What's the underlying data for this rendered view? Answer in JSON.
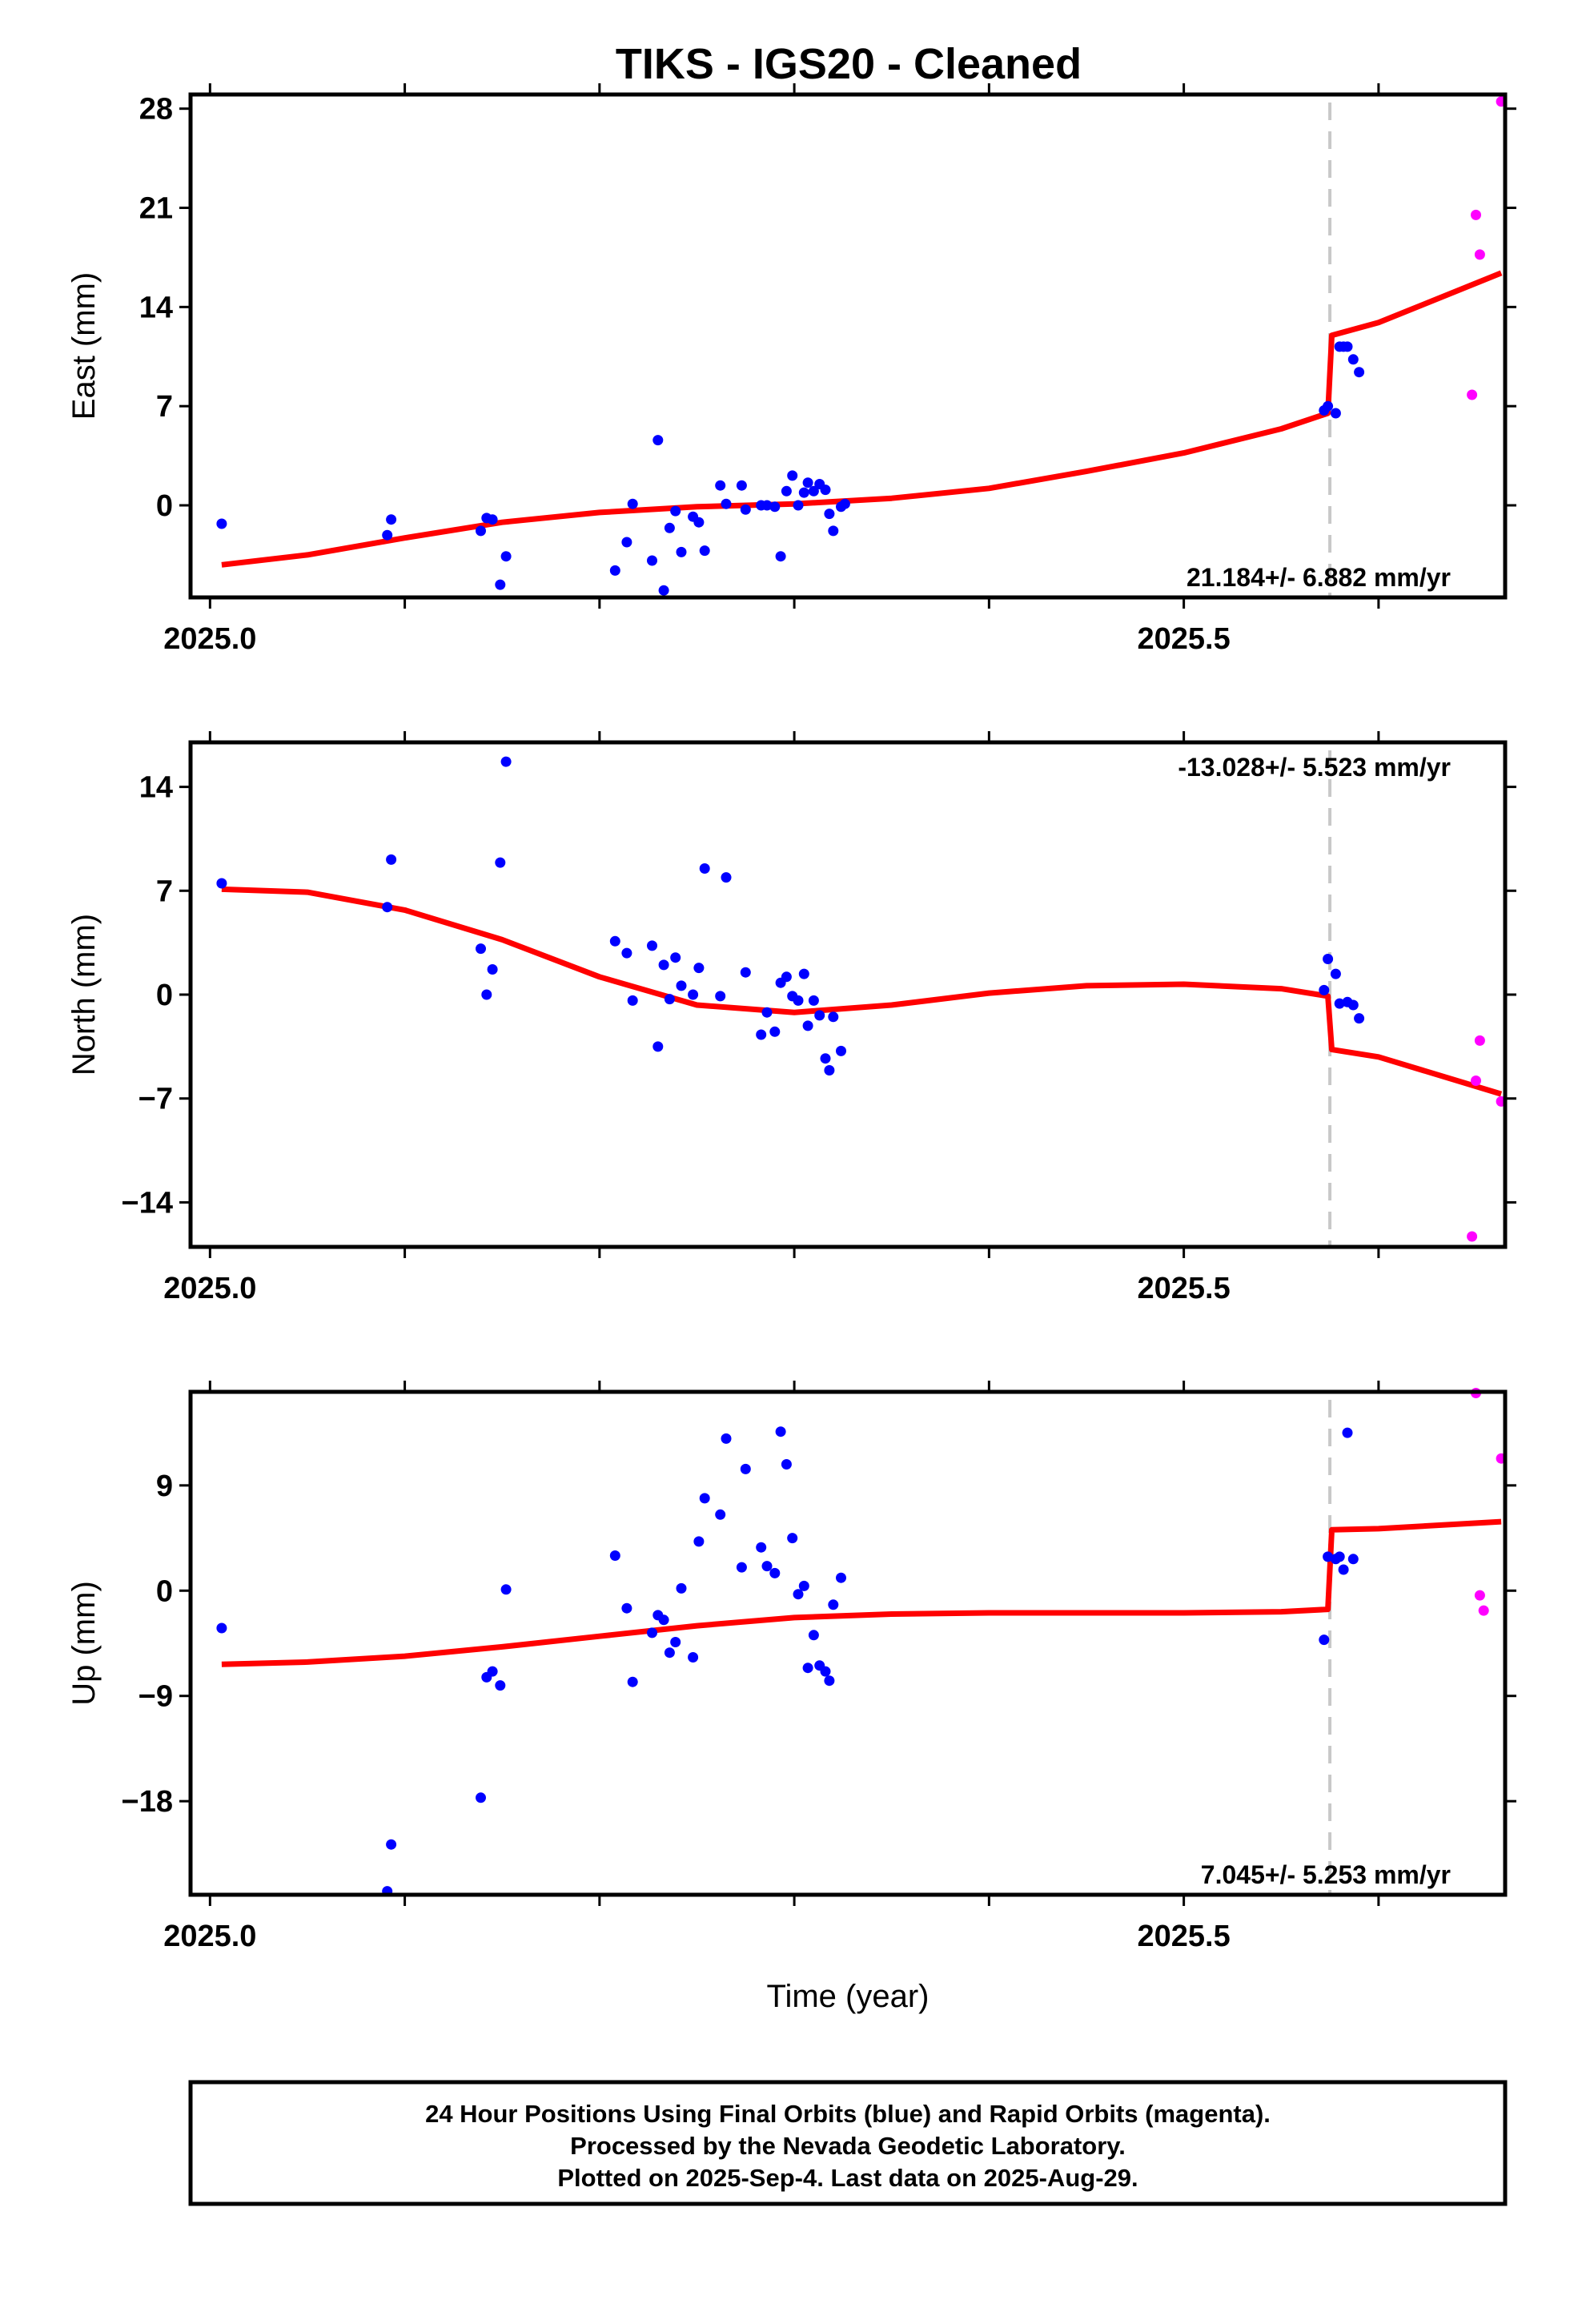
{
  "title": "TIKS  - IGS20 - Cleaned",
  "footer": {
    "lines": [
      "24 Hour Positions Using Final Orbits (blue) and Rapid Orbits (magenta).",
      "Processed by the Nevada Geodetic Laboratory.",
      "Plotted on 2025-Sep-4. Last data on 2025-Aug-29."
    ]
  },
  "colors": {
    "final": "#0000ff",
    "rapid": "#ff00ff",
    "model": "#ff0000",
    "step_line": "#c8c8c8"
  },
  "chart_data": [
    {
      "type": "scatter",
      "ylabel": "East (mm)",
      "xlabel": "",
      "xlim": [
        2024.99,
        2025.665
      ],
      "ylim": [
        -6.5,
        29
      ],
      "yticks": [
        0,
        7,
        14,
        21,
        28
      ],
      "xtick_labels": [
        {
          "value": 2025.0,
          "label": "2025.0"
        },
        {
          "value": 2025.5,
          "label": "2025.5"
        }
      ],
      "step_epoch": 2025.575,
      "rate_label": "21.184+/- 6.882 mm/yr",
      "rate_position": "bottom-right",
      "final_orbits": [
        [
          2025.006,
          -1.3
        ],
        [
          2025.091,
          -2.1
        ],
        [
          2025.093,
          -1.0
        ],
        [
          2025.139,
          -1.8
        ],
        [
          2025.142,
          -0.9
        ],
        [
          2025.145,
          -1.0
        ],
        [
          2025.149,
          -5.6
        ],
        [
          2025.152,
          -3.6
        ],
        [
          2025.208,
          -4.6
        ],
        [
          2025.214,
          -2.6
        ],
        [
          2025.217,
          0.1
        ],
        [
          2025.227,
          -3.9
        ],
        [
          2025.23,
          4.6
        ],
        [
          2025.233,
          -6.0
        ],
        [
          2025.236,
          -1.6
        ],
        [
          2025.239,
          -0.4
        ],
        [
          2025.242,
          -3.3
        ],
        [
          2025.248,
          -0.8
        ],
        [
          2025.251,
          -1.2
        ],
        [
          2025.254,
          -3.2
        ],
        [
          2025.262,
          1.4
        ],
        [
          2025.265,
          0.1
        ],
        [
          2025.273,
          1.4
        ],
        [
          2025.275,
          -0.3
        ],
        [
          2025.283,
          0.0
        ],
        [
          2025.286,
          0.0
        ],
        [
          2025.29,
          -0.1
        ],
        [
          2025.293,
          -3.6
        ],
        [
          2025.296,
          1.0
        ],
        [
          2025.299,
          2.1
        ],
        [
          2025.302,
          0.0
        ],
        [
          2025.305,
          0.9
        ],
        [
          2025.307,
          1.6
        ],
        [
          2025.31,
          1.0
        ],
        [
          2025.313,
          1.5
        ],
        [
          2025.316,
          1.1
        ],
        [
          2025.318,
          -0.6
        ],
        [
          2025.32,
          -1.8
        ],
        [
          2025.324,
          -0.1
        ],
        [
          2025.326,
          0.1
        ],
        [
          2025.572,
          6.7
        ],
        [
          2025.574,
          7.0
        ],
        [
          2025.578,
          6.5
        ],
        [
          2025.58,
          11.2
        ],
        [
          2025.582,
          11.2
        ],
        [
          2025.584,
          11.2
        ],
        [
          2025.587,
          10.3
        ],
        [
          2025.59,
          9.4
        ]
      ],
      "rapid_orbits": [
        [
          2025.648,
          7.8
        ],
        [
          2025.65,
          20.5
        ],
        [
          2025.652,
          17.7
        ],
        [
          2025.663,
          28.5
        ]
      ],
      "model_line": [
        [
          2025.006,
          -4.2
        ],
        [
          2025.05,
          -3.5
        ],
        [
          2025.1,
          -2.3
        ],
        [
          2025.15,
          -1.2
        ],
        [
          2025.2,
          -0.5
        ],
        [
          2025.25,
          -0.1
        ],
        [
          2025.3,
          0.1
        ],
        [
          2025.35,
          0.5
        ],
        [
          2025.4,
          1.2
        ],
        [
          2025.45,
          2.4
        ],
        [
          2025.5,
          3.7
        ],
        [
          2025.55,
          5.4
        ],
        [
          2025.574,
          6.5
        ],
        [
          2025.576,
          12.0
        ],
        [
          2025.6,
          12.9
        ],
        [
          2025.663,
          16.4
        ]
      ]
    },
    {
      "type": "scatter",
      "ylabel": "North (mm)",
      "xlabel": "",
      "xlim": [
        2024.99,
        2025.665
      ],
      "ylim": [
        -17,
        17
      ],
      "yticks": [
        -14,
        -7,
        0,
        7,
        14
      ],
      "xtick_labels": [
        {
          "value": 2025.0,
          "label": "2025.0"
        },
        {
          "value": 2025.5,
          "label": "2025.5"
        }
      ],
      "step_epoch": 2025.575,
      "rate_label": "-13.028+/- 5.523 mm/yr",
      "rate_position": "top-right",
      "final_orbits": [
        [
          2025.006,
          7.5
        ],
        [
          2025.091,
          5.9
        ],
        [
          2025.093,
          9.1
        ],
        [
          2025.139,
          3.1
        ],
        [
          2025.142,
          0.0
        ],
        [
          2025.145,
          1.7
        ],
        [
          2025.149,
          8.9
        ],
        [
          2025.152,
          15.7
        ],
        [
          2025.208,
          3.6
        ],
        [
          2025.214,
          2.8
        ],
        [
          2025.217,
          -0.4
        ],
        [
          2025.227,
          3.3
        ],
        [
          2025.23,
          -3.5
        ],
        [
          2025.233,
          2.0
        ],
        [
          2025.236,
          -0.3
        ],
        [
          2025.239,
          2.5
        ],
        [
          2025.242,
          0.6
        ],
        [
          2025.248,
          0.0
        ],
        [
          2025.251,
          1.8
        ],
        [
          2025.254,
          8.5
        ],
        [
          2025.262,
          -0.1
        ],
        [
          2025.265,
          7.9
        ],
        [
          2025.275,
          1.5
        ],
        [
          2025.283,
          -2.7
        ],
        [
          2025.286,
          -1.2
        ],
        [
          2025.29,
          -2.5
        ],
        [
          2025.293,
          0.8
        ],
        [
          2025.296,
          1.2
        ],
        [
          2025.299,
          -0.1
        ],
        [
          2025.302,
          -0.4
        ],
        [
          2025.305,
          1.4
        ],
        [
          2025.307,
          -2.1
        ],
        [
          2025.31,
          -0.4
        ],
        [
          2025.313,
          -1.4
        ],
        [
          2025.316,
          -4.3
        ],
        [
          2025.318,
          -5.1
        ],
        [
          2025.32,
          -1.5
        ],
        [
          2025.324,
          -3.8
        ],
        [
          2025.572,
          0.3
        ],
        [
          2025.574,
          2.4
        ],
        [
          2025.578,
          1.4
        ],
        [
          2025.58,
          -0.6
        ],
        [
          2025.584,
          -0.5
        ],
        [
          2025.587,
          -0.7
        ],
        [
          2025.59,
          -1.6
        ]
      ],
      "rapid_orbits": [
        [
          2025.648,
          -16.3
        ],
        [
          2025.65,
          -5.8
        ],
        [
          2025.652,
          -3.1
        ],
        [
          2025.663,
          -7.2
        ]
      ],
      "model_line": [
        [
          2025.006,
          7.1
        ],
        [
          2025.05,
          6.9
        ],
        [
          2025.1,
          5.7
        ],
        [
          2025.15,
          3.7
        ],
        [
          2025.2,
          1.2
        ],
        [
          2025.25,
          -0.7
        ],
        [
          2025.3,
          -1.2
        ],
        [
          2025.35,
          -0.7
        ],
        [
          2025.4,
          0.1
        ],
        [
          2025.45,
          0.6
        ],
        [
          2025.5,
          0.7
        ],
        [
          2025.55,
          0.4
        ],
        [
          2025.574,
          -0.1
        ],
        [
          2025.576,
          -3.7
        ],
        [
          2025.6,
          -4.2
        ],
        [
          2025.663,
          -6.7
        ]
      ]
    },
    {
      "type": "scatter",
      "ylabel": "Up (mm)",
      "xlabel": "Time (year)",
      "xlim": [
        2024.99,
        2025.665
      ],
      "ylim": [
        -26,
        17
      ],
      "yticks": [
        -18,
        -9,
        0,
        9
      ],
      "xtick_labels": [
        {
          "value": 2025.0,
          "label": "2025.0"
        },
        {
          "value": 2025.5,
          "label": "2025.5"
        }
      ],
      "step_epoch": 2025.575,
      "rate_label": "7.045+/- 5.253 mm/yr",
      "rate_position": "bottom-right",
      "final_orbits": [
        [
          2025.006,
          -3.2
        ],
        [
          2025.091,
          -25.7
        ],
        [
          2025.093,
          -21.7
        ],
        [
          2025.139,
          -17.7
        ],
        [
          2025.142,
          -7.4
        ],
        [
          2025.145,
          -6.9
        ],
        [
          2025.149,
          -8.1
        ],
        [
          2025.152,
          0.1
        ],
        [
          2025.208,
          3.0
        ],
        [
          2025.214,
          -1.5
        ],
        [
          2025.217,
          -7.8
        ],
        [
          2025.227,
          -3.6
        ],
        [
          2025.23,
          -2.1
        ],
        [
          2025.233,
          -2.5
        ],
        [
          2025.236,
          -5.3
        ],
        [
          2025.239,
          -4.4
        ],
        [
          2025.242,
          0.2
        ],
        [
          2025.248,
          -5.7
        ],
        [
          2025.251,
          4.2
        ],
        [
          2025.254,
          7.9
        ],
        [
          2025.262,
          6.5
        ],
        [
          2025.265,
          13.0
        ],
        [
          2025.273,
          2.0
        ],
        [
          2025.275,
          10.4
        ],
        [
          2025.283,
          3.7
        ],
        [
          2025.286,
          2.1
        ],
        [
          2025.29,
          1.5
        ],
        [
          2025.293,
          13.6
        ],
        [
          2025.296,
          10.8
        ],
        [
          2025.299,
          4.5
        ],
        [
          2025.302,
          -0.3
        ],
        [
          2025.305,
          0.4
        ],
        [
          2025.307,
          -6.6
        ],
        [
          2025.31,
          -3.8
        ],
        [
          2025.313,
          -6.4
        ],
        [
          2025.316,
          -6.9
        ],
        [
          2025.318,
          -7.7
        ],
        [
          2025.32,
          -1.2
        ],
        [
          2025.324,
          1.1
        ],
        [
          2025.572,
          -4.2
        ],
        [
          2025.574,
          2.9
        ],
        [
          2025.578,
          2.7
        ],
        [
          2025.58,
          2.9
        ],
        [
          2025.582,
          1.8
        ],
        [
          2025.584,
          13.5
        ],
        [
          2025.587,
          2.7
        ]
      ],
      "rapid_orbits": [
        [
          2025.65,
          16.9
        ],
        [
          2025.652,
          -0.4
        ],
        [
          2025.654,
          -1.7
        ],
        [
          2025.663,
          11.3
        ]
      ],
      "model_line": [
        [
          2025.006,
          -6.3
        ],
        [
          2025.05,
          -6.1
        ],
        [
          2025.1,
          -5.6
        ],
        [
          2025.15,
          -4.8
        ],
        [
          2025.2,
          -3.9
        ],
        [
          2025.25,
          -3.0
        ],
        [
          2025.3,
          -2.3
        ],
        [
          2025.35,
          -2.0
        ],
        [
          2025.4,
          -1.9
        ],
        [
          2025.45,
          -1.9
        ],
        [
          2025.5,
          -1.9
        ],
        [
          2025.55,
          -1.8
        ],
        [
          2025.574,
          -1.6
        ],
        [
          2025.576,
          5.2
        ],
        [
          2025.6,
          5.3
        ],
        [
          2025.663,
          5.9
        ]
      ]
    }
  ]
}
